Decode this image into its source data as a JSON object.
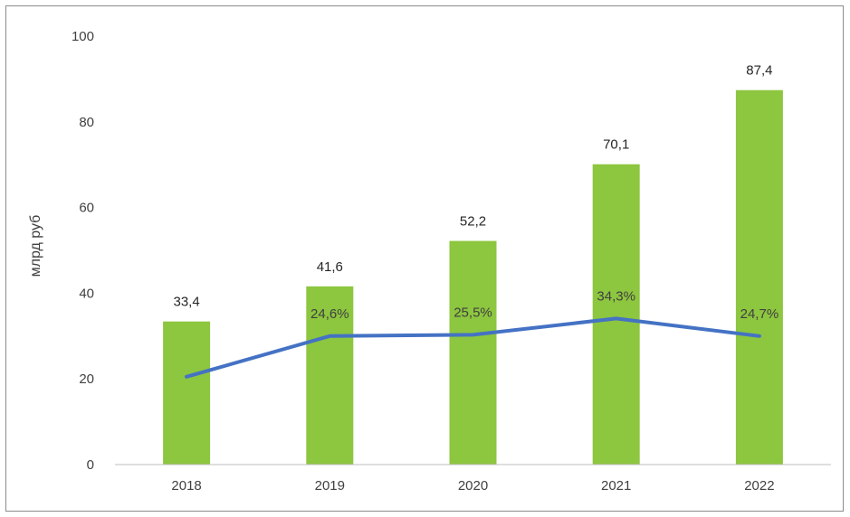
{
  "chart_data": {
    "type": "bar",
    "categories": [
      "2018",
      "2019",
      "2020",
      "2021",
      "2022"
    ],
    "series": [
      {
        "type": "bar",
        "values": [
          33.4,
          41.6,
          52.2,
          70.1,
          87.4
        ],
        "labels": [
          "33,4",
          "41,6",
          "52,2",
          "70,1",
          "87,4"
        ],
        "color": "#8dc63f"
      },
      {
        "type": "line",
        "values": [
          20.5,
          30,
          30.3,
          34.1,
          30
        ],
        "labels": [
          "",
          "24,6%",
          "25,5%",
          "34,3%",
          "24,7%"
        ],
        "color": "#4472c4"
      }
    ],
    "ylabel": "млрд руб",
    "ylim": [
      0,
      100
    ],
    "yticks": [
      "0",
      "20",
      "40",
      "60",
      "80",
      "100"
    ],
    "grid": false,
    "legend": "none"
  }
}
